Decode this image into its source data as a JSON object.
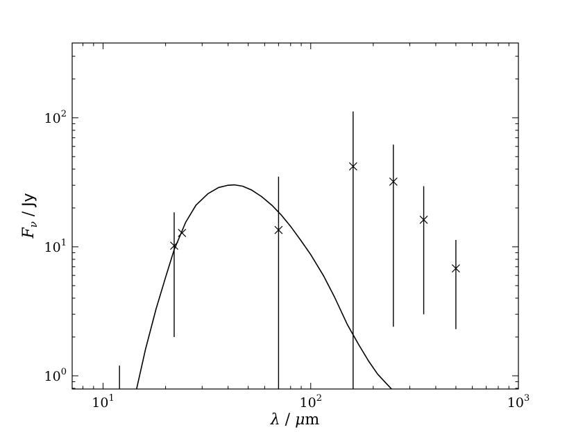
{
  "chart_data": {
    "type": "scatter",
    "title": "",
    "xlabel": {
      "italic": "λ",
      "sep": " / ",
      "unit_italic": "μ",
      "unit_rest": "m"
    },
    "ylabel": {
      "italic": "F",
      "subscript": "ν",
      "sep": " / ",
      "unit": "Jy"
    },
    "x_scale": "log",
    "y_scale": "log",
    "xlim": [
      7.1,
      1000
    ],
    "ylim": [
      0.79,
      380
    ],
    "x_ticks": [
      {
        "value": 10,
        "base": "10",
        "exp": "1"
      },
      {
        "value": 100,
        "base": "10",
        "exp": "2"
      },
      {
        "value": 1000,
        "base": "10",
        "exp": "3"
      }
    ],
    "y_ticks": [
      {
        "value": 1,
        "base": "10",
        "exp": "0"
      },
      {
        "value": 10,
        "base": "10",
        "exp": "1"
      },
      {
        "value": 100,
        "base": "10",
        "exp": "2"
      }
    ],
    "grid": false,
    "series": [
      {
        "kind": "points_with_errorbars",
        "marker": "x",
        "color": "#000000",
        "points": [
          {
            "x": 22,
            "y": 10.2,
            "yerr_low": 2.0,
            "yerr_high": 18.5
          },
          {
            "x": 24,
            "y": 12.8,
            "yerr_low": null,
            "yerr_high": null
          },
          {
            "x": 70,
            "y": 13.5,
            "yerr_low": 0.79,
            "yerr_high": 35
          },
          {
            "x": 160,
            "y": 42,
            "yerr_low": 0.79,
            "yerr_high": 112
          },
          {
            "x": 250,
            "y": 32,
            "yerr_low": 2.4,
            "yerr_high": 62
          },
          {
            "x": 350,
            "y": 16.2,
            "yerr_low": 3.0,
            "yerr_high": 29.5
          },
          {
            "x": 500,
            "y": 6.8,
            "yerr_low": 2.3,
            "yerr_high": 11.3
          }
        ],
        "upper_limit_bars": [
          {
            "x": 12,
            "y_low": 0.79,
            "y_high": 1.2
          }
        ]
      },
      {
        "kind": "model_curve",
        "color": "#000000",
        "x": [
          14.5,
          16,
          18,
          20,
          22,
          25,
          28,
          32,
          36,
          40,
          43,
          47,
          52,
          58,
          65,
          72,
          80,
          90,
          100,
          115,
          130,
          150,
          170,
          190,
          210,
          230,
          245
        ],
        "y": [
          0.79,
          1.6,
          3.3,
          5.8,
          9.5,
          15.5,
          21.0,
          25.8,
          28.8,
          30.0,
          30.2,
          29.5,
          27.5,
          24.5,
          21.0,
          17.7,
          14.4,
          11.1,
          8.7,
          6.0,
          4.1,
          2.5,
          1.75,
          1.3,
          1.03,
          0.88,
          0.79
        ]
      }
    ],
    "legend": null
  }
}
